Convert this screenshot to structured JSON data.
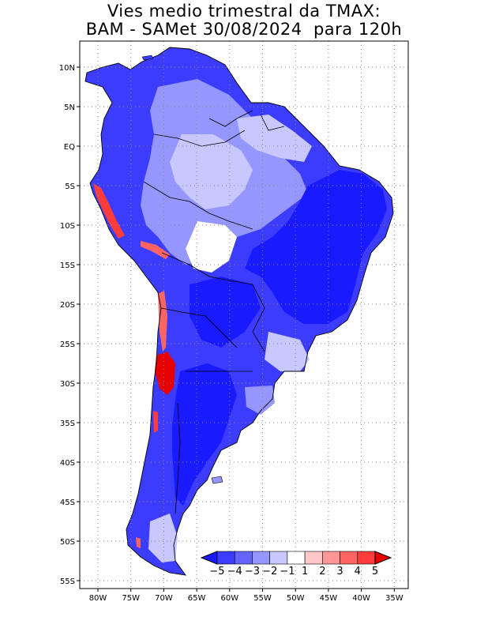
{
  "title": {
    "line1": "Vies medio trimestral da TMAX:",
    "line2": "BAM - SAMet 30/08/2024  para 120h"
  },
  "map": {
    "lat_labels": [
      "10N",
      "5N",
      "EQ",
      "5S",
      "10S",
      "15S",
      "20S",
      "25S",
      "30S",
      "35S",
      "40S",
      "45S",
      "50S",
      "55S"
    ],
    "lon_labels": [
      "80W",
      "75W",
      "70W",
      "65W",
      "60W",
      "55W",
      "50W",
      "45W",
      "40W",
      "35W"
    ],
    "grid": "dotted",
    "region": "South America"
  },
  "colorbar": {
    "labels": [
      "-5",
      "-4",
      "-3",
      "-2",
      "-1",
      "1",
      "2",
      "3",
      "4",
      "5"
    ],
    "colors": [
      "#1a1aff",
      "#3c3cff",
      "#6464ff",
      "#9696ff",
      "#c8c8ff",
      "#ffffff",
      "#ffc8c8",
      "#ff9696",
      "#ff6464",
      "#ff3c3c",
      "#e60000"
    ]
  }
}
